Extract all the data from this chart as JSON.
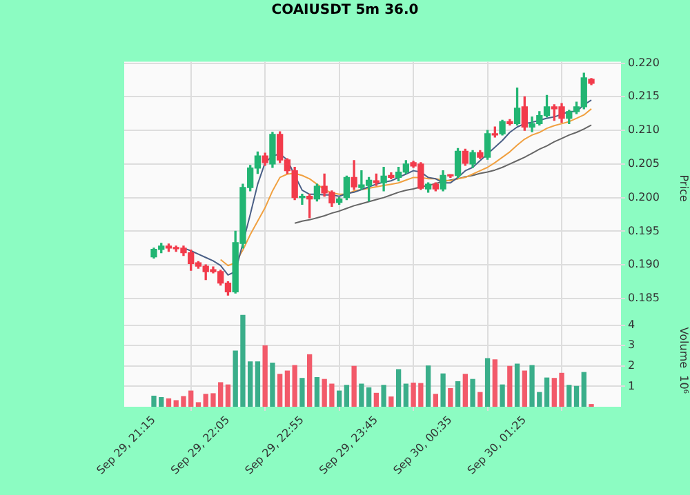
{
  "chart_data": [
    {
      "type": "candlestick",
      "title": "COAIUSDT 5m 36.0",
      "ylabel": "Price",
      "tick_labels": "y",
      "grid": true,
      "categories": [
        null,
        null,
        null,
        null,
        null,
        null,
        null,
        null,
        null,
        null,
        null,
        null,
        null,
        null,
        null,
        null,
        null,
        null,
        null,
        null,
        null,
        null,
        null,
        null,
        null,
        null,
        null,
        null,
        null,
        null,
        null,
        null,
        null,
        null,
        null,
        null,
        null,
        null,
        null,
        null,
        null,
        null,
        null,
        null,
        null,
        null,
        null,
        null,
        null,
        null,
        null,
        null,
        null,
        null,
        null,
        null,
        null,
        null,
        null,
        null
      ],
      "ylim": [
        0.1826,
        0.2202
      ],
      "yticks": [
        {
          "value": 0.185,
          "label": "0.185"
        },
        {
          "value": 0.19,
          "label": "0.190"
        },
        {
          "value": 0.195,
          "label": "0.195"
        },
        {
          "value": 0.2,
          "label": "0.200"
        },
        {
          "value": 0.205,
          "label": "0.205"
        },
        {
          "value": 0.21,
          "label": "0.210"
        },
        {
          "value": 0.215,
          "label": "0.215"
        },
        {
          "value": 0.22,
          "label": "0.220"
        }
      ],
      "ohlc": [
        [
          0.1912,
          0.1925,
          0.191,
          0.1923
        ],
        [
          0.1923,
          0.1932,
          0.1918,
          0.1928
        ],
        [
          0.1928,
          0.1931,
          0.192,
          0.1925
        ],
        [
          0.1925,
          0.1928,
          0.192,
          0.1924
        ],
        [
          0.1925,
          0.1928,
          0.1914,
          0.1918
        ],
        [
          0.1918,
          0.1922,
          0.1892,
          0.1902
        ],
        [
          0.1903,
          0.1905,
          0.1895,
          0.1898
        ],
        [
          0.1898,
          0.19,
          0.1878,
          0.189
        ],
        [
          0.1893,
          0.1897,
          0.1888,
          0.189
        ],
        [
          0.189,
          0.1892,
          0.187,
          0.1873
        ],
        [
          0.1873,
          0.1875,
          0.1855,
          0.186
        ],
        [
          0.186,
          0.195,
          0.1858,
          0.1933
        ],
        [
          0.1932,
          0.202,
          0.1925,
          0.2015
        ],
        [
          0.2015,
          0.2048,
          0.201,
          0.2044
        ],
        [
          0.2044,
          0.2068,
          0.2036,
          0.2062
        ],
        [
          0.2062,
          0.2066,
          0.2048,
          0.2052
        ],
        [
          0.205,
          0.2097,
          0.2045,
          0.2094
        ],
        [
          0.2094,
          0.2098,
          0.2052,
          0.2056
        ],
        [
          0.2056,
          0.2058,
          0.2036,
          0.204
        ],
        [
          0.204,
          0.2045,
          0.1997,
          0.2
        ],
        [
          0.2,
          0.2005,
          0.199,
          0.2002
        ],
        [
          0.2002,
          0.2005,
          0.197,
          0.1998
        ],
        [
          0.1998,
          0.202,
          0.1995,
          0.2017
        ],
        [
          0.2017,
          0.2035,
          0.2002,
          0.2007
        ],
        [
          0.2008,
          0.201,
          0.1987,
          0.1992
        ],
        [
          0.1993,
          0.2,
          0.199,
          0.1998
        ],
        [
          0.2,
          0.2032,
          0.1997,
          0.203
        ],
        [
          0.203,
          0.2055,
          0.2012,
          0.2016
        ],
        [
          0.2015,
          0.204,
          0.2012,
          0.2019
        ],
        [
          0.2018,
          0.203,
          0.1995,
          0.2026
        ],
        [
          0.2025,
          0.2035,
          0.2018,
          0.2022
        ],
        [
          0.2022,
          0.2045,
          0.201,
          0.2032
        ],
        [
          0.2033,
          0.2037,
          0.2028,
          0.203
        ],
        [
          0.203,
          0.2045,
          0.2025,
          0.2038
        ],
        [
          0.2038,
          0.2055,
          0.2036,
          0.205
        ],
        [
          0.2052,
          0.2054,
          0.2045,
          0.2047
        ],
        [
          0.205,
          0.2052,
          0.2012,
          0.2014
        ],
        [
          0.2013,
          0.2022,
          0.2008,
          0.202
        ],
        [
          0.202,
          0.2022,
          0.201,
          0.2013
        ],
        [
          0.2013,
          0.204,
          0.201,
          0.2033
        ],
        [
          0.2033,
          0.2034,
          0.203,
          0.2032
        ],
        [
          0.2033,
          0.2073,
          0.203,
          0.2069
        ],
        [
          0.2069,
          0.2072,
          0.2048,
          0.2051
        ],
        [
          0.205,
          0.207,
          0.2045,
          0.2067
        ],
        [
          0.2067,
          0.207,
          0.2058,
          0.206
        ],
        [
          0.206,
          0.21,
          0.2057,
          0.2095
        ],
        [
          0.2095,
          0.2105,
          0.209,
          0.2093
        ],
        [
          0.2095,
          0.2115,
          0.2093,
          0.2113
        ],
        [
          0.2113,
          0.2116,
          0.2108,
          0.211
        ],
        [
          0.211,
          0.2163,
          0.2108,
          0.2133
        ],
        [
          0.2135,
          0.215,
          0.21,
          0.2105
        ],
        [
          0.2105,
          0.212,
          0.2098,
          0.211
        ],
        [
          0.211,
          0.2128,
          0.2108,
          0.2122
        ],
        [
          0.2122,
          0.2152,
          0.212,
          0.2135
        ],
        [
          0.2135,
          0.2138,
          0.2115,
          0.2132
        ],
        [
          0.2135,
          0.214,
          0.2112,
          0.2118
        ],
        [
          0.2118,
          0.213,
          0.211,
          0.2128
        ],
        [
          0.2128,
          0.2142,
          0.2125,
          0.2135
        ],
        [
          0.2135,
          0.2185,
          0.2132,
          0.2178
        ],
        [
          0.2176,
          0.2177,
          0.2168,
          0.217
        ]
      ],
      "colors": [
        "#22b573",
        "#22b573",
        "#f23b4b",
        "#f23b4b",
        "#f23b4b",
        "#f23b4b",
        "#f23b4b",
        "#f23b4b",
        "#f23b4b",
        "#f23b4b",
        "#f23b4b",
        "#22b573",
        "#22b573",
        "#22b573",
        "#22b573",
        "#f23b4b",
        "#22b573",
        "#f23b4b",
        "#f23b4b",
        "#f23b4b",
        "#22b573",
        "#f23b4b",
        "#22b573",
        "#f23b4b",
        "#f23b4b",
        "#22b573",
        "#22b573",
        "#f23b4b",
        "#22b573",
        "#22b573",
        "#f23b4b",
        "#22b573",
        "#f23b4b",
        "#22b573",
        "#22b573",
        "#f23b4b",
        "#f23b4b",
        "#22b573",
        "#f23b4b",
        "#22b573",
        "#f23b4b",
        "#22b573",
        "#f23b4b",
        "#22b573",
        "#f23b4b",
        "#22b573",
        "#f23b4b",
        "#22b573",
        "#f23b4b",
        "#22b573",
        "#f23b4b",
        "#22b573",
        "#22b573",
        "#22b573",
        "#f23b4b",
        "#f23b4b",
        "#22b573",
        "#22b573",
        "#22b573",
        "#f23b4b"
      ],
      "series": [
        {
          "type": "line",
          "color": "#4a5f86",
          "values": [
            null,
            null,
            null,
            null,
            0.1925,
            0.1921,
            0.1916,
            0.1911,
            0.1906,
            0.1899,
            0.1885,
            0.189,
            0.1932,
            0.1975,
            0.202,
            0.2052,
            0.2062,
            0.2065,
            0.2056,
            0.2033,
            0.2011,
            0.2005,
            0.2005,
            0.2004,
            0.2004,
            0.2002,
            0.2006,
            0.2008,
            0.2012,
            0.2016,
            0.202,
            0.2023,
            0.2025,
            0.203,
            0.2035,
            0.204,
            0.2038,
            0.203,
            0.2028,
            0.2022,
            0.2022,
            0.203,
            0.204,
            0.2045,
            0.2055,
            0.2065,
            0.2075,
            0.2085,
            0.2097,
            0.2105,
            0.211,
            0.2112,
            0.2115,
            0.2118,
            0.212,
            0.2124,
            0.2128,
            0.2128,
            0.2138,
            0.2145
          ]
        },
        {
          "type": "line",
          "color": "#f0a040",
          "values": [
            null,
            null,
            null,
            null,
            null,
            null,
            null,
            null,
            null,
            0.1908,
            0.1899,
            0.1903,
            0.1922,
            0.1945,
            0.1965,
            0.1985,
            0.201,
            0.203,
            0.2035,
            0.2036,
            0.2033,
            0.2028,
            0.202,
            0.2012,
            0.2007,
            0.2005,
            0.2005,
            0.201,
            0.2012,
            0.2014,
            0.2016,
            0.2018,
            0.202,
            0.2022,
            0.2026,
            0.203,
            0.203,
            0.2028,
            0.2028,
            0.2026,
            0.2025,
            0.2028,
            0.203,
            0.2035,
            0.204,
            0.2045,
            0.2052,
            0.206,
            0.2068,
            0.2078,
            0.2087,
            0.2093,
            0.2097,
            0.2103,
            0.2107,
            0.211,
            0.2113,
            0.2118,
            0.2123,
            0.2132
          ]
        },
        {
          "type": "line",
          "color": "#666666",
          "values": [
            null,
            null,
            null,
            null,
            null,
            null,
            null,
            null,
            null,
            null,
            null,
            null,
            null,
            null,
            null,
            null,
            null,
            null,
            null,
            0.1962,
            0.1965,
            0.1967,
            0.197,
            0.1973,
            0.1977,
            0.198,
            0.1984,
            0.1988,
            0.1991,
            0.1994,
            0.1997,
            0.2,
            0.2004,
            0.2008,
            0.2011,
            0.2013,
            0.2016,
            0.2018,
            0.2021,
            0.2024,
            0.2026,
            0.2028,
            0.2031,
            0.2033,
            0.2036,
            0.2038,
            0.2041,
            0.2045,
            0.205,
            0.2055,
            0.206,
            0.2066,
            0.2072,
            0.2077,
            0.2083,
            0.2088,
            0.2093,
            0.2097,
            0.2102,
            0.2108
          ]
        }
      ]
    },
    {
      "type": "bar",
      "ylabel": "Volume  10⁶",
      "grid": true,
      "categories": [
        "Sep 29, 21:15",
        null,
        null,
        null,
        null,
        null,
        null,
        null,
        null,
        null,
        "Sep 29, 22:05",
        null,
        null,
        null,
        null,
        null,
        null,
        null,
        null,
        null,
        "Sep 29, 22:55",
        null,
        null,
        null,
        null,
        null,
        null,
        null,
        null,
        null,
        "Sep 29, 23:45",
        null,
        null,
        null,
        null,
        null,
        null,
        null,
        null,
        null,
        "Sep 30, 00:35",
        null,
        null,
        null,
        null,
        null,
        null,
        null,
        null,
        null,
        "Sep 30, 01:25",
        null,
        null,
        null,
        null,
        null,
        null,
        null,
        null,
        null
      ],
      "ylim": [
        0,
        4.54
      ],
      "yticks": [
        1,
        2,
        3,
        4
      ],
      "values": [
        0.52,
        0.45,
        0.39,
        0.3,
        0.5,
        0.77,
        0.2,
        0.61,
        0.64,
        1.18,
        1.07,
        2.73,
        4.48,
        2.2,
        2.2,
        2.98,
        2.14,
        1.59,
        1.75,
        2.02,
        1.39,
        2.55,
        1.43,
        1.34,
        1.11,
        0.77,
        1.05,
        1.98,
        1.11,
        0.93,
        0.66,
        1.05,
        0.48,
        1.82,
        1.11,
        1.16,
        1.14,
        2.0,
        0.61,
        1.61,
        0.89,
        1.23,
        1.59,
        1.34,
        0.7,
        2.36,
        2.3,
        1.07,
        1.98,
        2.09,
        1.75,
        2.02,
        0.7,
        1.41,
        1.39,
        1.64,
        1.05,
        1.0,
        1.68,
        0.11
      ],
      "colors": [
        "#3aae8a",
        "#3aae8a",
        "#f25a6a",
        "#f25a6a",
        "#f25a6a",
        "#f25a6a",
        "#f25a6a",
        "#f25a6a",
        "#f25a6a",
        "#f25a6a",
        "#f25a6a",
        "#3aae8a",
        "#3aae8a",
        "#3aae8a",
        "#3aae8a",
        "#f25a6a",
        "#3aae8a",
        "#f25a6a",
        "#f25a6a",
        "#f25a6a",
        "#3aae8a",
        "#f25a6a",
        "#3aae8a",
        "#f25a6a",
        "#f25a6a",
        "#3aae8a",
        "#3aae8a",
        "#f25a6a",
        "#3aae8a",
        "#3aae8a",
        "#f25a6a",
        "#3aae8a",
        "#f25a6a",
        "#3aae8a",
        "#3aae8a",
        "#f25a6a",
        "#f25a6a",
        "#3aae8a",
        "#f25a6a",
        "#3aae8a",
        "#f25a6a",
        "#3aae8a",
        "#f25a6a",
        "#3aae8a",
        "#f25a6a",
        "#3aae8a",
        "#f25a6a",
        "#3aae8a",
        "#f25a6a",
        "#3aae8a",
        "#f25a6a",
        "#3aae8a",
        "#3aae8a",
        "#3aae8a",
        "#f25a6a",
        "#f25a6a",
        "#3aae8a",
        "#3aae8a",
        "#3aae8a",
        "#f25a6a"
      ]
    }
  ]
}
